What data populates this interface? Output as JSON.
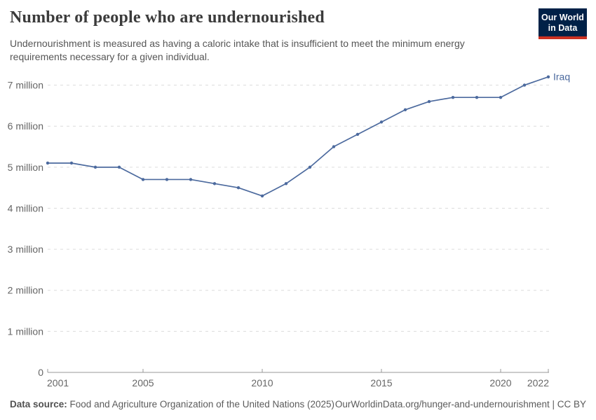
{
  "header": {
    "title": "Number of people who are undernourished",
    "subtitle": "Undernourishment is measured as having a caloric intake that is insufficient to meet the minimum energy requirements necessary for a given individual.",
    "logo": {
      "line1": "Our World",
      "line2": "in Data"
    }
  },
  "footer": {
    "source_label": "Data source:",
    "source_text": "Food and Agriculture Organization of the United Nations (2025)",
    "credit": "OurWorldinData.org/hunger-and-undernourishment | CC BY"
  },
  "colors": {
    "series_blue": "#4c6a9e",
    "logo_navy": "#002147",
    "logo_red": "#cb3122",
    "gridline": "#dcdcdc",
    "axis": "#999999",
    "axis_label": "#666666"
  },
  "chart_data": {
    "type": "line",
    "title": "Number of people who are undernourished",
    "unit": "million people",
    "x": [
      2001,
      2002,
      2003,
      2004,
      2005,
      2006,
      2007,
      2008,
      2009,
      2010,
      2011,
      2012,
      2013,
      2014,
      2015,
      2016,
      2017,
      2018,
      2019,
      2020,
      2021,
      2022
    ],
    "series": [
      {
        "name": "Iraq",
        "color": "#4c6a9e",
        "values": [
          5.1,
          5.1,
          5.0,
          5.0,
          4.7,
          4.7,
          4.7,
          4.6,
          4.5,
          4.3,
          4.6,
          5.0,
          5.5,
          5.8,
          6.1,
          6.4,
          6.6,
          6.7,
          6.7,
          6.7,
          7.0,
          7.2
        ]
      }
    ],
    "ylim": [
      0,
      7.4
    ],
    "y_ticks": [
      0,
      1,
      2,
      3,
      4,
      5,
      6,
      7
    ],
    "y_tick_labels": [
      "0",
      "1 million",
      "2 million",
      "3 million",
      "4 million",
      "5 million",
      "6 million",
      "7 million"
    ],
    "x_ticks": [
      2001,
      2005,
      2010,
      2015,
      2020,
      2022
    ],
    "x_tick_labels": [
      "2001",
      "2005",
      "2010",
      "2015",
      "2020",
      "2022"
    ],
    "grid": "horizontal-dashed",
    "legend": "entity label at end of line"
  }
}
